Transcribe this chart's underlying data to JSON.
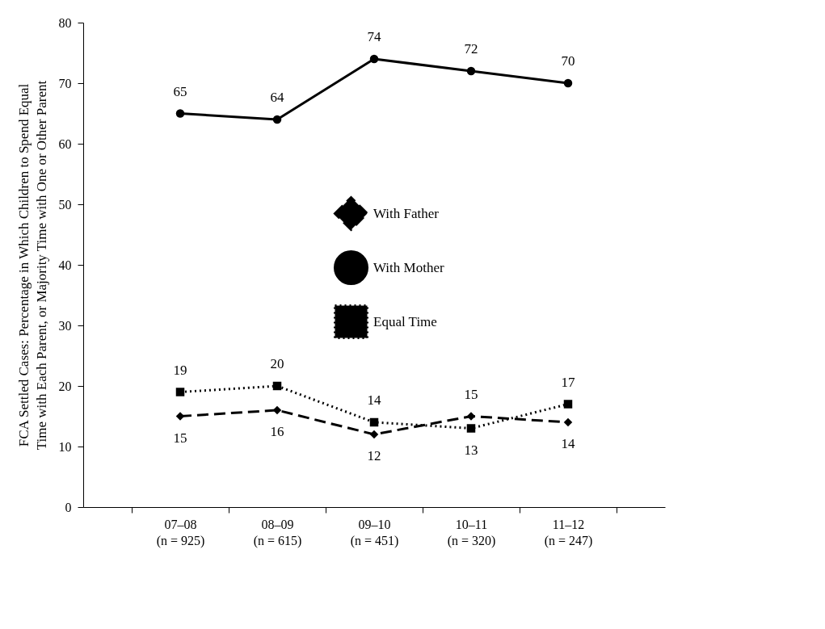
{
  "chart_data": {
    "type": "line",
    "ylabel": "FCA Settled Cases: Percentage in Which Children to Spend Equal\nTime with Each Parent, or Majority Time with One or Other Parent",
    "categories": [
      "07–08\n(n = 925)",
      "08–09\n(n = 615)",
      "09–10\n(n = 451)",
      "10–11\n(n = 320)",
      "11–12\n(n = 247)"
    ],
    "series": [
      {
        "name": "With Father",
        "color": "#000000",
        "marker": "diamond",
        "line_style": "dashed",
        "values": [
          15,
          16,
          12,
          15,
          14
        ]
      },
      {
        "name": "With Mother",
        "color": "#000000",
        "marker": "circle",
        "line_style": "solid",
        "values": [
          65,
          64,
          74,
          72,
          70
        ]
      },
      {
        "name": "Equal Time",
        "color": "#000000",
        "marker": "square",
        "line_style": "dotted",
        "values": [
          19,
          20,
          14,
          13,
          17
        ]
      }
    ],
    "ylim": [
      0,
      80
    ],
    "yticks": [
      0,
      10,
      20,
      30,
      40,
      50,
      60,
      70,
      80
    ],
    "grid": false,
    "legend": "center",
    "data_labels": true
  }
}
